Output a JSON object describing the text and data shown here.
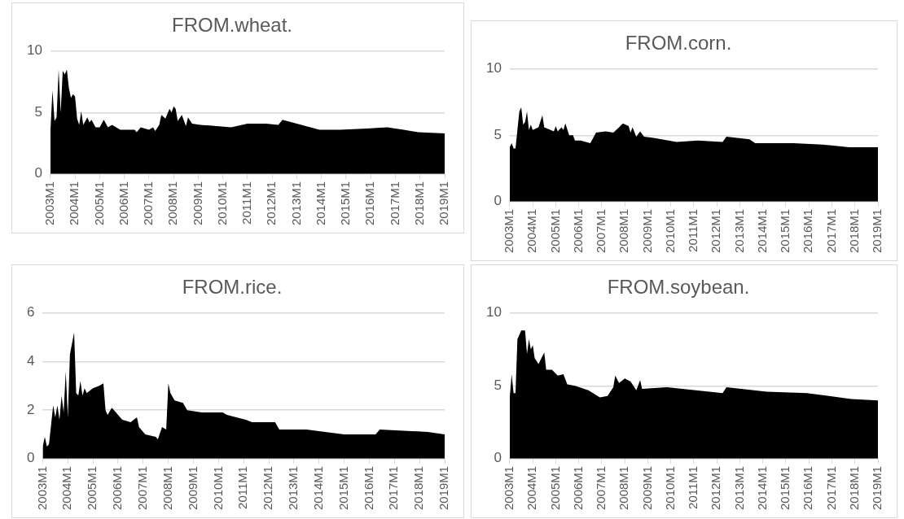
{
  "chart_data": [
    {
      "type": "area",
      "title": "FROM.wheat.",
      "xlim": [
        "2003-01",
        "2019-01"
      ],
      "xticks": [
        {
          "value": "2003-01",
          "label": "2003M1"
        },
        {
          "value": "2004-01",
          "label": "2004M1"
        },
        {
          "value": "2005-01",
          "label": "2005M1"
        },
        {
          "value": "2006-01",
          "label": "2006M1"
        },
        {
          "value": "2007-01",
          "label": "2007M1"
        },
        {
          "value": "2008-01",
          "label": "2008M1"
        },
        {
          "value": "2009-01",
          "label": "2009M1"
        },
        {
          "value": "2010-01",
          "label": "2010M1"
        },
        {
          "value": "2011-01",
          "label": "2011M1"
        },
        {
          "value": "2012-01",
          "label": "2012M1"
        },
        {
          "value": "2013-01",
          "label": "2013M1"
        },
        {
          "value": "2014-01",
          "label": "2014M1"
        },
        {
          "value": "2015-01",
          "label": "2015M1"
        },
        {
          "value": "2016-01",
          "label": "2016M1"
        },
        {
          "value": "2017-01",
          "label": "2017M1"
        },
        {
          "value": "2018-01",
          "label": "2018M1"
        },
        {
          "value": "2019-01",
          "label": "2019M1"
        }
      ],
      "ylim": [
        0,
        10
      ],
      "yticks": [
        0,
        5,
        10
      ],
      "grid": "y",
      "series": [
        {
          "color": "#000000",
          "x": [
            "2003-01",
            "2003-02",
            "2003-03",
            "2003-04",
            "2003-05",
            "2003-06",
            "2003-07",
            "2003-08",
            "2003-09",
            "2003-10",
            "2003-11",
            "2003-12",
            "2004-01",
            "2004-02",
            "2004-03",
            "2004-04",
            "2004-05",
            "2004-07",
            "2004-08",
            "2004-09",
            "2004-11",
            "2005-01",
            "2005-03",
            "2005-05",
            "2005-07",
            "2005-11",
            "2006-06",
            "2006-07",
            "2006-09",
            "2007-01",
            "2007-03",
            "2007-04",
            "2007-06",
            "2007-07",
            "2007-09",
            "2007-11",
            "2007-12",
            "2008-01",
            "2008-02",
            "2008-03",
            "2008-05",
            "2008-07",
            "2008-08",
            "2008-10",
            "2009-02",
            "2009-10",
            "2010-05",
            "2011-01",
            "2011-10",
            "2012-04",
            "2012-06",
            "2013-01",
            "2013-12",
            "2014-10",
            "2015-11",
            "2016-09",
            "2017-05",
            "2017-12",
            "2019-01"
          ],
          "values": [
            3.5,
            6.8,
            4.3,
            4.6,
            8.5,
            5,
            8.4,
            8.1,
            8.5,
            7,
            6.2,
            6.5,
            6.3,
            4.5,
            4,
            5.1,
            4,
            4.6,
            4.2,
            4.4,
            3.8,
            3.8,
            4.4,
            3.8,
            4,
            3.6,
            3.6,
            3.4,
            3.8,
            3.6,
            3.8,
            3.5,
            4,
            4.8,
            4.5,
            5.3,
            5,
            5.5,
            5.3,
            4.3,
            4.8,
            3.9,
            4.6,
            4.1,
            4,
            3.9,
            3.8,
            4.1,
            4.1,
            4,
            4.4,
            4.1,
            3.6,
            3.6,
            3.7,
            3.8,
            3.6,
            3.4,
            3.3
          ]
        }
      ]
    },
    {
      "type": "area",
      "title": "FROM.corn.",
      "xlim": [
        "2003-01",
        "2019-01"
      ],
      "xticks": [
        {
          "value": "2003-01",
          "label": "2003M1"
        },
        {
          "value": "2004-01",
          "label": "2004M1"
        },
        {
          "value": "2005-01",
          "label": "2005M1"
        },
        {
          "value": "2006-01",
          "label": "2006M1"
        },
        {
          "value": "2007-01",
          "label": "2007M1"
        },
        {
          "value": "2008-01",
          "label": "2008M1"
        },
        {
          "value": "2009-01",
          "label": "2009M1"
        },
        {
          "value": "2010-01",
          "label": "2010M1"
        },
        {
          "value": "2011-01",
          "label": "2011M1"
        },
        {
          "value": "2012-01",
          "label": "2012M1"
        },
        {
          "value": "2013-01",
          "label": "2013M1"
        },
        {
          "value": "2014-01",
          "label": "2014M1"
        },
        {
          "value": "2015-01",
          "label": "2015M1"
        },
        {
          "value": "2016-01",
          "label": "2016M1"
        },
        {
          "value": "2017-01",
          "label": "2017M1"
        },
        {
          "value": "2018-01",
          "label": "2018M1"
        },
        {
          "value": "2019-01",
          "label": "2019M1"
        }
      ],
      "ylim": [
        0,
        10
      ],
      "yticks": [
        0,
        5,
        10
      ],
      "grid": "y",
      "series": [
        {
          "color": "#000000",
          "x": [
            "2003-01",
            "2003-02",
            "2003-03",
            "2003-04",
            "2003-06",
            "2003-07",
            "2003-08",
            "2003-09",
            "2003-10",
            "2003-11",
            "2003-12",
            "2004-01",
            "2004-04",
            "2004-06",
            "2004-07",
            "2004-12",
            "2005-01",
            "2005-02",
            "2005-04",
            "2005-05",
            "2005-06",
            "2005-08",
            "2005-10",
            "2005-11",
            "2006-02",
            "2006-07",
            "2006-10",
            "2007-03",
            "2007-07",
            "2007-10",
            "2007-12",
            "2008-03",
            "2008-04",
            "2008-05",
            "2008-07",
            "2008-09",
            "2008-11",
            "2009-04",
            "2010-04",
            "2011-03",
            "2012-04",
            "2012-06",
            "2013-06",
            "2013-09",
            "2015-05",
            "2016-08",
            "2017-10",
            "2019-01"
          ],
          "values": [
            4.1,
            4.4,
            4,
            4,
            6.8,
            7.1,
            5.8,
            6,
            6.8,
            5.4,
            5.8,
            5.4,
            5.6,
            6.5,
            5.6,
            5.3,
            5.7,
            5.3,
            5.6,
            5.4,
            5.9,
            5,
            5,
            4.6,
            4.6,
            4.4,
            5.2,
            5.3,
            5.2,
            5.6,
            5.9,
            5.7,
            5.2,
            5.6,
            4.9,
            5.3,
            4.9,
            4.8,
            4.5,
            4.6,
            4.5,
            4.9,
            4.7,
            4.4,
            4.4,
            4.3,
            4.1,
            4.1
          ]
        }
      ]
    },
    {
      "type": "area",
      "title": "FROM.rice.",
      "xlim": [
        "2003-01",
        "2019-01"
      ],
      "xticks": [
        {
          "value": "2003-01",
          "label": "2003M1"
        },
        {
          "value": "2004-01",
          "label": "2004M1"
        },
        {
          "value": "2005-01",
          "label": "2005M1"
        },
        {
          "value": "2006-01",
          "label": "2006M1"
        },
        {
          "value": "2007-01",
          "label": "2007M1"
        },
        {
          "value": "2008-01",
          "label": "2008M1"
        },
        {
          "value": "2009-01",
          "label": "2009M1"
        },
        {
          "value": "2010-01",
          "label": "2010M1"
        },
        {
          "value": "2011-01",
          "label": "2011M1"
        },
        {
          "value": "2012-01",
          "label": "2012M1"
        },
        {
          "value": "2013-01",
          "label": "2013M1"
        },
        {
          "value": "2014-01",
          "label": "2014M1"
        },
        {
          "value": "2015-01",
          "label": "2015M1"
        },
        {
          "value": "2016-01",
          "label": "2016M1"
        },
        {
          "value": "2017-01",
          "label": "2017M1"
        },
        {
          "value": "2018-01",
          "label": "2018M1"
        },
        {
          "value": "2019-01",
          "label": "2019M1"
        }
      ],
      "ylim": [
        0,
        6
      ],
      "yticks": [
        0,
        2,
        4,
        6
      ],
      "grid": "y",
      "series": [
        {
          "color": "#000000",
          "x": [
            "2003-01",
            "2003-02",
            "2003-03",
            "2003-04",
            "2003-06",
            "2003-07",
            "2003-08",
            "2003-09",
            "2003-10",
            "2003-11",
            "2003-12",
            "2004-01",
            "2004-02",
            "2004-04",
            "2004-05",
            "2004-06",
            "2004-07",
            "2004-08",
            "2004-09",
            "2004-10",
            "2005-01",
            "2005-04",
            "2005-06",
            "2005-07",
            "2005-08",
            "2005-10",
            "2005-12",
            "2006-03",
            "2006-07",
            "2006-10",
            "2006-11",
            "2007-02",
            "2007-07",
            "2007-08",
            "2007-10",
            "2007-12",
            "2008-01",
            "2008-02",
            "2008-04",
            "2008-08",
            "2008-10",
            "2009-05",
            "2010-03",
            "2010-05",
            "2011-02",
            "2011-05",
            "2012-04",
            "2012-06",
            "2013-07",
            "2015-01",
            "2016-04",
            "2016-06",
            "2018-05",
            "2019-01"
          ],
          "values": [
            0.5,
            0.9,
            0.5,
            0.6,
            2.2,
            1.7,
            2.2,
            1.6,
            2.6,
            1.9,
            3.6,
            1.7,
            4.3,
            5.2,
            2.7,
            2.6,
            3.2,
            2.6,
            2.9,
            2.7,
            2.9,
            3,
            3.1,
            2,
            1.8,
            2.1,
            1.9,
            1.6,
            1.5,
            1.7,
            1.3,
            1,
            0.9,
            0.8,
            1.3,
            1.2,
            3.1,
            2.7,
            2.4,
            2.3,
            2,
            1.9,
            1.9,
            1.8,
            1.6,
            1.5,
            1.5,
            1.2,
            1.2,
            1,
            1,
            1.2,
            1.1,
            1
          ]
        }
      ]
    },
    {
      "type": "area",
      "title": "FROM.soybean.",
      "xlim": [
        "2003-01",
        "2019-01"
      ],
      "xticks": [
        {
          "value": "2003-01",
          "label": "2003M1"
        },
        {
          "value": "2004-01",
          "label": "2004M1"
        },
        {
          "value": "2005-01",
          "label": "2005M1"
        },
        {
          "value": "2006-01",
          "label": "2006M1"
        },
        {
          "value": "2007-01",
          "label": "2007M1"
        },
        {
          "value": "2008-01",
          "label": "2008M1"
        },
        {
          "value": "2009-01",
          "label": "2009M1"
        },
        {
          "value": "2010-01",
          "label": "2010M1"
        },
        {
          "value": "2011-01",
          "label": "2011M1"
        },
        {
          "value": "2012-01",
          "label": "2012M1"
        },
        {
          "value": "2013-01",
          "label": "2013M1"
        },
        {
          "value": "2014-01",
          "label": "2014M1"
        },
        {
          "value": "2015-01",
          "label": "2015M1"
        },
        {
          "value": "2016-01",
          "label": "2016M1"
        },
        {
          "value": "2017-01",
          "label": "2017M1"
        },
        {
          "value": "2018-01",
          "label": "2018M1"
        },
        {
          "value": "2019-01",
          "label": "2019M1"
        }
      ],
      "ylim": [
        0,
        10
      ],
      "yticks": [
        0,
        5,
        10
      ],
      "grid": "y",
      "series": [
        {
          "color": "#000000",
          "x": [
            "2003-01",
            "2003-02",
            "2003-03",
            "2003-04",
            "2003-05",
            "2003-07",
            "2003-09",
            "2003-10",
            "2003-11",
            "2003-12",
            "2004-01",
            "2004-02",
            "2004-04",
            "2004-07",
            "2004-08",
            "2004-11",
            "2005-02",
            "2005-05",
            "2005-07",
            "2005-11",
            "2006-06",
            "2006-12",
            "2007-04",
            "2007-07",
            "2007-08",
            "2007-10",
            "2008-01",
            "2008-04",
            "2008-05",
            "2008-07",
            "2008-09",
            "2008-10",
            "2009-11",
            "2011-02",
            "2012-04",
            "2012-06",
            "2014-03",
            "2015-12",
            "2017-11",
            "2019-01"
          ],
          "values": [
            4.2,
            5.8,
            4.5,
            4.5,
            8.2,
            8.8,
            8.8,
            7.2,
            8.2,
            7.5,
            7.8,
            6.9,
            6.5,
            7.3,
            6.1,
            6.1,
            5.7,
            5.8,
            5.1,
            5,
            4.7,
            4.2,
            4.3,
            4.9,
            5.7,
            5.2,
            5.5,
            5.3,
            5.1,
            4.7,
            5.4,
            4.8,
            4.9,
            4.7,
            4.5,
            4.9,
            4.6,
            4.5,
            4.1,
            4
          ]
        }
      ]
    }
  ]
}
